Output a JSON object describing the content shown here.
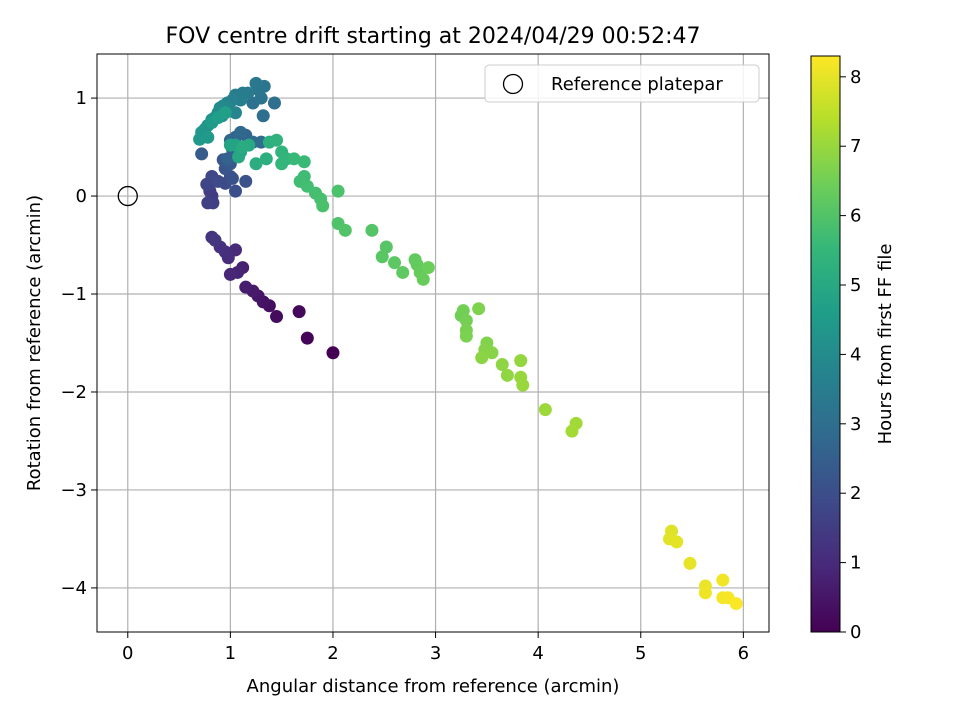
{
  "chart_data": {
    "type": "scatter",
    "title": "FOV centre drift starting at 2024/04/29 00:52:47",
    "xlabel": "Angular distance from reference (arcmin)",
    "ylabel": "Rotation from reference (arcmin)",
    "xlim": [
      -0.3,
      6.25
    ],
    "ylim": [
      -4.45,
      1.45
    ],
    "xticks": [
      0,
      1,
      2,
      3,
      4,
      5,
      6
    ],
    "yticks": [
      1,
      0,
      -1,
      -2,
      -3,
      -4
    ],
    "xtick_labels": [
      "0",
      "1",
      "2",
      "3",
      "4",
      "5",
      "6"
    ],
    "ytick_labels": [
      "1",
      "0",
      "−1",
      "−2",
      "−3",
      "−4"
    ],
    "grid": true,
    "legend": {
      "placement": "top-right",
      "entries": [
        {
          "label": "Reference platepar",
          "marker": "open-circle",
          "x": 0,
          "y": 0
        }
      ]
    },
    "colorbar": {
      "label": "Hours from first FF file",
      "range": [
        0,
        8.3
      ],
      "ticks": [
        0,
        1,
        2,
        3,
        4,
        5,
        6,
        7,
        8
      ],
      "tick_labels": [
        "0",
        "1",
        "2",
        "3",
        "4",
        "5",
        "6",
        "7",
        "8"
      ],
      "colormap": "viridis",
      "colors": [
        "#440154",
        "#482878",
        "#3e4989",
        "#31688e",
        "#26828e",
        "#1f9e89",
        "#35b779",
        "#6ece58",
        "#b5de2b",
        "#fde725"
      ]
    },
    "point_color_value": "hours",
    "series": [
      {
        "points": [
          [
            2.0,
            -1.6,
            0.0
          ],
          [
            1.75,
            -1.45,
            0.1
          ],
          [
            1.67,
            -1.18,
            0.18
          ],
          [
            1.45,
            -1.23,
            0.26
          ],
          [
            1.38,
            -1.12,
            0.34
          ],
          [
            1.32,
            -1.08,
            0.42
          ],
          [
            1.27,
            -1.02,
            0.5
          ],
          [
            1.22,
            -0.97,
            0.58
          ],
          [
            1.15,
            -0.93,
            0.66
          ],
          [
            1.12,
            -0.73,
            0.74
          ],
          [
            1.07,
            -0.78,
            0.82
          ],
          [
            1.0,
            -0.8,
            0.9
          ],
          [
            1.05,
            -0.55,
            0.98
          ],
          [
            0.98,
            -0.63,
            1.06
          ],
          [
            0.95,
            -0.57,
            1.12
          ],
          [
            0.9,
            -0.52,
            1.18
          ],
          [
            0.82,
            -0.42,
            1.26
          ],
          [
            0.85,
            -0.45,
            1.32
          ],
          [
            0.82,
            0.0,
            1.4
          ],
          [
            0.8,
            0.05,
            1.48
          ],
          [
            0.83,
            -0.07,
            1.56
          ],
          [
            0.78,
            -0.07,
            1.62
          ],
          [
            0.8,
            0.12,
            1.68
          ],
          [
            0.77,
            0.12,
            1.74
          ],
          [
            0.82,
            0.2,
            1.8
          ],
          [
            0.88,
            0.15,
            1.86
          ],
          [
            0.95,
            0.13,
            1.92
          ],
          [
            1.0,
            0.2,
            1.98
          ],
          [
            1.05,
            0.05,
            2.04
          ],
          [
            1.02,
            0.18,
            2.1
          ],
          [
            1.15,
            0.15,
            2.16
          ],
          [
            0.95,
            0.28,
            2.22
          ],
          [
            0.93,
            0.37,
            2.28
          ],
          [
            1.0,
            0.33,
            2.34
          ],
          [
            0.72,
            0.43,
            2.42
          ],
          [
            1.02,
            0.48,
            2.5
          ],
          [
            0.97,
            0.38,
            2.56
          ],
          [
            1.05,
            0.6,
            2.62
          ],
          [
            1.15,
            0.62,
            2.68
          ],
          [
            1.0,
            0.57,
            2.74
          ],
          [
            1.1,
            0.65,
            2.8
          ],
          [
            1.22,
            0.55,
            2.86
          ],
          [
            1.3,
            0.55,
            2.92
          ],
          [
            1.32,
            0.82,
            2.98
          ],
          [
            1.43,
            0.95,
            3.04
          ],
          [
            1.22,
            0.95,
            3.1
          ],
          [
            1.3,
            1.0,
            3.16
          ],
          [
            1.28,
            1.08,
            3.22
          ],
          [
            1.33,
            1.12,
            3.28
          ],
          [
            1.25,
            1.15,
            3.34
          ],
          [
            1.17,
            1.05,
            3.4
          ],
          [
            1.12,
            1.05,
            3.46
          ],
          [
            1.05,
            1.03,
            3.52
          ],
          [
            1.1,
            0.98,
            3.58
          ],
          [
            1.02,
            0.98,
            3.64
          ],
          [
            0.97,
            0.95,
            3.7
          ],
          [
            1.05,
            0.85,
            3.76
          ],
          [
            0.98,
            0.9,
            3.82
          ],
          [
            0.93,
            0.92,
            3.88
          ],
          [
            0.9,
            0.9,
            3.94
          ],
          [
            0.88,
            0.85,
            4.0
          ],
          [
            0.92,
            0.82,
            4.06
          ],
          [
            0.85,
            0.8,
            4.12
          ],
          [
            0.82,
            0.78,
            4.18
          ],
          [
            0.78,
            0.72,
            4.24
          ],
          [
            0.75,
            0.68,
            4.3
          ],
          [
            0.72,
            0.65,
            4.36
          ],
          [
            0.7,
            0.58,
            4.44
          ],
          [
            0.78,
            0.6,
            4.5
          ],
          [
            0.82,
            0.75,
            4.56
          ],
          [
            0.88,
            0.8,
            4.62
          ],
          [
            0.95,
            0.85,
            4.7
          ],
          [
            1.05,
            0.52,
            4.78
          ],
          [
            1.0,
            0.52,
            4.84
          ],
          [
            1.1,
            0.45,
            4.9
          ],
          [
            1.08,
            0.4,
            4.96
          ],
          [
            1.18,
            0.52,
            5.02
          ],
          [
            1.12,
            0.5,
            5.08
          ],
          [
            1.25,
            0.33,
            5.14
          ],
          [
            1.35,
            0.38,
            5.2
          ],
          [
            1.38,
            0.55,
            5.26
          ],
          [
            1.45,
            0.57,
            5.32
          ],
          [
            1.5,
            0.45,
            5.38
          ],
          [
            1.55,
            0.38,
            5.44
          ],
          [
            1.5,
            0.33,
            5.5
          ],
          [
            1.62,
            0.38,
            5.56
          ],
          [
            1.72,
            0.35,
            5.62
          ],
          [
            1.72,
            0.2,
            5.68
          ],
          [
            1.68,
            0.15,
            5.72
          ],
          [
            1.75,
            0.1,
            5.76
          ],
          [
            1.83,
            0.03,
            5.8
          ],
          [
            1.88,
            -0.03,
            5.84
          ],
          [
            1.9,
            -0.1,
            5.88
          ],
          [
            2.05,
            0.05,
            5.92
          ],
          [
            2.05,
            -0.28,
            5.96
          ],
          [
            2.12,
            -0.35,
            6.0
          ],
          [
            2.38,
            -0.35,
            6.04
          ],
          [
            2.52,
            -0.52,
            6.08
          ],
          [
            2.48,
            -0.62,
            6.12
          ],
          [
            2.6,
            -0.68,
            6.16
          ],
          [
            2.68,
            -0.78,
            6.2
          ],
          [
            2.8,
            -0.65,
            6.24
          ],
          [
            2.82,
            -0.7,
            6.28
          ],
          [
            2.85,
            -0.78,
            6.32
          ],
          [
            2.88,
            -0.85,
            6.36
          ],
          [
            2.93,
            -0.73,
            6.4
          ],
          [
            3.25,
            -1.22,
            6.46
          ],
          [
            3.27,
            -1.17,
            6.5
          ],
          [
            3.3,
            -1.27,
            6.54
          ],
          [
            3.3,
            -1.37,
            6.58
          ],
          [
            3.3,
            -1.43,
            6.62
          ],
          [
            3.42,
            -1.15,
            6.66
          ],
          [
            3.5,
            -1.5,
            6.7
          ],
          [
            3.48,
            -1.57,
            6.74
          ],
          [
            3.55,
            -1.6,
            6.78
          ],
          [
            3.45,
            -1.65,
            6.82
          ],
          [
            3.65,
            -1.72,
            6.86
          ],
          [
            3.7,
            -1.83,
            6.9
          ],
          [
            3.83,
            -1.68,
            6.94
          ],
          [
            3.83,
            -1.85,
            6.98
          ],
          [
            3.85,
            -1.93,
            7.02
          ],
          [
            4.07,
            -2.18,
            7.06
          ],
          [
            4.37,
            -2.32,
            7.12
          ],
          [
            4.33,
            -2.4,
            7.16
          ],
          [
            5.3,
            -3.42,
            7.9
          ],
          [
            5.28,
            -3.5,
            7.94
          ],
          [
            5.35,
            -3.53,
            7.98
          ],
          [
            5.48,
            -3.75,
            8.02
          ],
          [
            5.63,
            -3.98,
            8.06
          ],
          [
            5.63,
            -4.05,
            8.1
          ],
          [
            5.8,
            -3.92,
            8.14
          ],
          [
            5.8,
            -4.1,
            8.18
          ],
          [
            5.85,
            -4.1,
            8.22
          ],
          [
            5.93,
            -4.16,
            8.26
          ]
        ]
      }
    ]
  }
}
